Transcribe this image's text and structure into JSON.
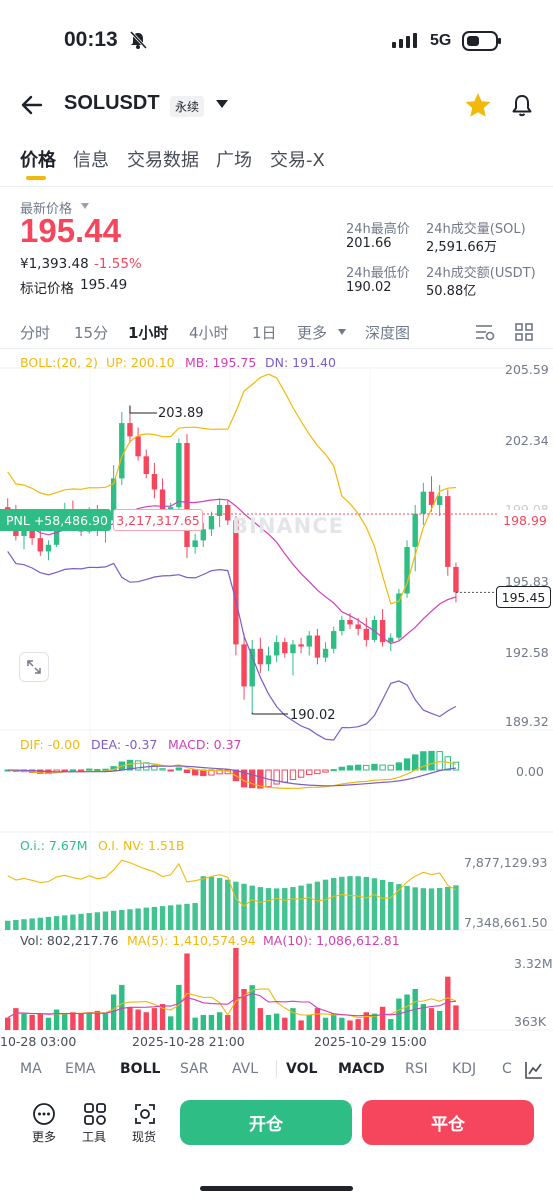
{
  "status": {
    "time": "00:13",
    "network": "5G"
  },
  "header": {
    "symbol": "SOLUSDT",
    "contract_type": "永续"
  },
  "tabs": [
    "价格",
    "信息",
    "交易数据",
    "广场",
    "交易-X"
  ],
  "price": {
    "last_label": "最新价格",
    "last": "195.44",
    "cny": "¥1,393.48",
    "change": "-1.55%",
    "mark_label": "标记价格",
    "mark": "195.49"
  },
  "stats": {
    "high_label": "24h最高价",
    "high": "201.66",
    "vol_sol_label": "24h成交量(SOL)",
    "vol_sol": "2,591.66万",
    "low_label": "24h最低价",
    "low": "190.02",
    "vol_usdt_label": "24h成交额(USDT)",
    "vol_usdt": "50.88亿"
  },
  "intervals": [
    "分时",
    "15分",
    "1小时",
    "4小时",
    "1日",
    "更多",
    "深度图"
  ],
  "active_interval": "1小时",
  "indicators": {
    "boll": {
      "name": "BOLL:(20, 2)",
      "up": "UP: 200.10",
      "mb": "MB: 195.75",
      "dn": "DN: 191.40"
    },
    "macd": {
      "dif": "DIF: -0.00",
      "dea": "DEA: -0.37",
      "macd": "MACD: 0.37"
    },
    "oi": {
      "oi": "O.i.: 7.67M",
      "oi_nv": "O.I. NV: 1.51B"
    },
    "vol": {
      "vol": "Vol: 802,217.76",
      "ma5": "MA(5): 1,410,574.94",
      "ma10": "MA(10): 1,086,612.81"
    }
  },
  "main_axis": [
    "205.59",
    "202.34",
    "199.08",
    "195.83",
    "192.58",
    "189.32"
  ],
  "markers": {
    "high": "203.89",
    "low": "190.02",
    "pnl": "PNL +58,486.90",
    "position": "3,217,317.65",
    "entry_price": "198.99",
    "current_price": "195.45",
    "watermark": "BINANCE"
  },
  "macd_axis": "0.00",
  "oi_axis": [
    "7,877,129.93",
    "7,348,661.50"
  ],
  "vol_axis": [
    "3.32M",
    "363K"
  ],
  "time_axis": [
    "10-28 03:00",
    "2025-10-28 21:00",
    "2025-10-29 15:00"
  ],
  "bottom_tabs": [
    "MA",
    "EMA",
    "BOLL",
    "SAR",
    "AVL",
    "VOL",
    "MACD",
    "RSI",
    "KDJ",
    "C"
  ],
  "tools": [
    "更多",
    "工具",
    "现货"
  ],
  "buttons": {
    "open": "开仓",
    "close": "平仓"
  },
  "colors": {
    "up": "#2ebd85",
    "down": "#f6465d",
    "accent": "#f0b90b",
    "boll_up": "#f0b90b",
    "boll_mb": "#d040b8",
    "boll_dn": "#7b5dc7"
  },
  "chart_data": {
    "type": "candlestick",
    "interval": "1h",
    "candles_ohlc": [
      [
        199.3,
        199.7,
        198.8,
        199.1
      ],
      [
        199.1,
        199.4,
        197.8,
        198.0
      ],
      [
        198.0,
        198.6,
        197.4,
        198.4
      ],
      [
        198.4,
        198.7,
        197.6,
        197.9
      ],
      [
        197.9,
        198.3,
        197.1,
        197.3
      ],
      [
        197.3,
        197.8,
        196.9,
        197.6
      ],
      [
        197.6,
        199.0,
        197.5,
        198.8
      ],
      [
        198.8,
        199.5,
        198.3,
        199.2
      ],
      [
        199.2,
        199.6,
        198.3,
        198.6
      ],
      [
        198.6,
        199.2,
        198.0,
        198.2
      ],
      [
        198.2,
        199.3,
        198.1,
        199.1
      ],
      [
        199.1,
        199.4,
        198.0,
        198.3
      ],
      [
        198.3,
        198.9,
        197.7,
        198.7
      ],
      [
        198.7,
        201.2,
        198.6,
        200.6
      ],
      [
        200.6,
        203.6,
        200.3,
        203.1
      ],
      [
        203.1,
        203.89,
        202.2,
        202.5
      ],
      [
        202.5,
        202.9,
        201.4,
        201.6
      ],
      [
        201.6,
        201.9,
        200.6,
        200.8
      ],
      [
        200.8,
        201.3,
        199.7,
        200.1
      ],
      [
        200.1,
        200.6,
        198.7,
        198.9
      ],
      [
        198.9,
        199.5,
        198.5,
        199.3
      ],
      [
        199.3,
        202.4,
        199.1,
        202.2
      ],
      [
        202.2,
        202.6,
        197.0,
        197.5
      ],
      [
        197.5,
        198.1,
        197.2,
        197.8
      ],
      [
        197.8,
        198.6,
        197.5,
        198.3
      ],
      [
        198.3,
        199.1,
        198.0,
        198.9
      ],
      [
        198.9,
        199.7,
        198.4,
        199.4
      ],
      [
        199.4,
        199.6,
        198.5,
        198.7
      ],
      [
        198.7,
        198.9,
        192.6,
        193.1
      ],
      [
        193.1,
        193.6,
        190.6,
        191.2
      ],
      [
        191.2,
        193.3,
        190.02,
        192.9
      ],
      [
        192.9,
        193.4,
        191.8,
        192.2
      ],
      [
        192.2,
        193.0,
        191.9,
        192.6
      ],
      [
        192.6,
        193.5,
        192.3,
        193.2
      ],
      [
        193.2,
        193.4,
        192.5,
        192.7
      ],
      [
        192.7,
        193.3,
        191.7,
        193.1
      ],
      [
        193.1,
        193.4,
        192.7,
        193.0
      ],
      [
        193.0,
        193.7,
        192.6,
        193.5
      ],
      [
        193.5,
        193.8,
        192.2,
        192.5
      ],
      [
        192.5,
        193.2,
        192.3,
        192.9
      ],
      [
        192.9,
        193.9,
        192.7,
        193.7
      ],
      [
        193.7,
        194.4,
        193.5,
        194.2
      ],
      [
        194.2,
        194.5,
        193.8,
        194.0
      ],
      [
        194.0,
        194.3,
        193.5,
        193.8
      ],
      [
        193.8,
        194.3,
        193.0,
        193.3
      ],
      [
        193.3,
        194.4,
        193.2,
        194.2
      ],
      [
        194.2,
        194.7,
        193.0,
        193.2
      ],
      [
        193.2,
        193.6,
        192.8,
        193.4
      ],
      [
        193.4,
        195.6,
        193.3,
        195.4
      ],
      [
        195.4,
        197.8,
        195.2,
        197.5
      ],
      [
        197.5,
        199.4,
        196.4,
        199.0
      ],
      [
        199.0,
        200.4,
        198.5,
        200.0
      ],
      [
        200.0,
        200.7,
        199.1,
        199.4
      ],
      [
        199.4,
        200.3,
        198.9,
        199.8
      ],
      [
        199.8,
        200.1,
        196.2,
        196.6
      ],
      [
        196.6,
        196.8,
        195.0,
        195.45
      ]
    ],
    "boll": {
      "period": 20,
      "k": 2,
      "up": 200.1,
      "mb": 195.75,
      "dn": 191.4
    },
    "high_marker": 203.89,
    "low_marker": 190.02,
    "entry_price": 198.99,
    "current_price": 195.45,
    "y_range": [
      189.32,
      205.59
    ]
  }
}
